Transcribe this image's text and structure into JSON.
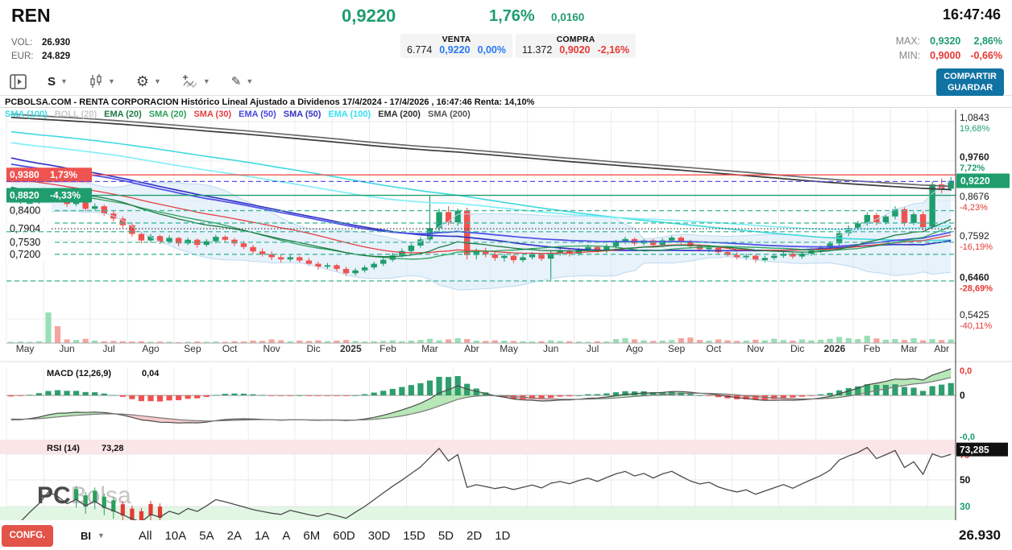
{
  "header": {
    "symbol": "REN",
    "price": "0,9220",
    "change_pct": "1,76%",
    "change_abs": "0,0160",
    "time": "16:47:46",
    "vol_label": "VOL:",
    "vol_value": "26.930",
    "eur_label": "EUR:",
    "eur_value": "24.829",
    "venta": {
      "title": "VENTA",
      "size": "6.774",
      "price": "0,9220",
      "pct": "0,00%"
    },
    "compra": {
      "title": "COMPRA",
      "size": "11.372",
      "price": "0,9020",
      "pct": "-2,16%"
    },
    "max": {
      "label": "MAX:",
      "value": "0,9320",
      "pct": "2,86%"
    },
    "min": {
      "label": "MIN:",
      "value": "0,9000",
      "pct": "-0,66%"
    }
  },
  "toolbar": {
    "interval": "S",
    "share_line1": "COMPARTIR",
    "share_line2": "GUARDAR"
  },
  "chart": {
    "title": "PCBOLSA.COM - RENTA CORPORACION Histórico Lineal Ajustado a Dividenos 17/4/2024 - 17/4/2026 , 16:47:46 Renta: 14,10%",
    "legend": [
      {
        "label": "SMA (100)",
        "color": "#3fd9e0"
      },
      {
        "label": "BOLL (20)",
        "color": "#c9c9c9"
      },
      {
        "label": "EMA (20)",
        "color": "#1d7a40"
      },
      {
        "label": "SMA (20)",
        "color": "#2ba05a"
      },
      {
        "label": "SMA (30)",
        "color": "#e34040"
      },
      {
        "label": "EMA (50)",
        "color": "#4747e0"
      },
      {
        "label": "SMA (50)",
        "color": "#3434c4"
      },
      {
        "label": "EMA (100)",
        "color": "#35e0f0"
      },
      {
        "label": "EMA (200)",
        "color": "#2f2f2f"
      },
      {
        "label": "SMA (200)",
        "color": "#555555"
      }
    ],
    "watermark": {
      "bold": "PC",
      "light": "Bolsa"
    }
  },
  "macd": {
    "label": "MACD (12,26,9)",
    "value": "0,04",
    "axis_top": {
      "label": "0,0",
      "color": "#e53935"
    },
    "axis_zero": {
      "label": "0",
      "color": "#111111"
    },
    "axis_bottom": {
      "label": "-0,0",
      "color": "#1f9d6d"
    }
  },
  "rsi": {
    "label": "RSI (14)",
    "value": "73,28",
    "current_box": "73,285",
    "level70": {
      "label": "70",
      "color": "#e53935"
    },
    "level50": {
      "label": "50",
      "color": "#111111"
    },
    "level30": {
      "label": "30",
      "color": "#1f9d6d"
    }
  },
  "bottom": {
    "confg": "CONFG.",
    "market": "BI",
    "ranges": [
      "All",
      "10A",
      "5A",
      "2A",
      "1A",
      "A",
      "6M",
      "60D",
      "30D",
      "15D",
      "5D",
      "2D",
      "1D"
    ],
    "current_volume": "26.930"
  },
  "chart_data": {
    "type": "candlestick",
    "period": "weekly",
    "date_range": "17/4/2024 - 17/4/2026",
    "current_price": 0.922,
    "y_axis": {
      "min": 0.4765,
      "max": 1.1175
    },
    "months": [
      {
        "l": "May",
        "i": 0
      },
      {
        "l": "Jun",
        "i": 4
      },
      {
        "l": "Jul",
        "i": 9
      },
      {
        "l": "Ago",
        "i": 13
      },
      {
        "l": "Sep",
        "i": 18
      },
      {
        "l": "Oct",
        "i": 22
      },
      {
        "l": "Nov",
        "i": 26
      },
      {
        "l": "Dic",
        "i": 31
      },
      {
        "l": "2025",
        "i": 35,
        "b": 1
      },
      {
        "l": "Feb",
        "i": 39
      },
      {
        "l": "Mar",
        "i": 43
      },
      {
        "l": "Abr",
        "i": 48
      },
      {
        "l": "May",
        "i": 52
      },
      {
        "l": "Jun",
        "i": 56
      },
      {
        "l": "Jul",
        "i": 61
      },
      {
        "l": "Ago",
        "i": 65
      },
      {
        "l": "Sep",
        "i": 70
      },
      {
        "l": "Oct",
        "i": 74
      },
      {
        "l": "Nov",
        "i": 78
      },
      {
        "l": "Dic",
        "i": 83
      },
      {
        "l": "2026",
        "i": 87,
        "b": 1
      },
      {
        "l": "Feb",
        "i": 91
      },
      {
        "l": "Mar",
        "i": 95
      },
      {
        "l": "Abr",
        "i": 99
      }
    ],
    "candles": [
      [
        0.836,
        0.852,
        0.828,
        0.845
      ],
      [
        0.845,
        0.862,
        0.84,
        0.852
      ],
      [
        0.852,
        0.872,
        0.846,
        0.862
      ],
      [
        0.862,
        0.88,
        0.856,
        0.872
      ],
      [
        0.872,
        0.896,
        0.866,
        0.888
      ],
      [
        0.888,
        0.893,
        0.868,
        0.878
      ],
      [
        0.878,
        0.884,
        0.85,
        0.858
      ],
      [
        0.858,
        0.872,
        0.852,
        0.864
      ],
      [
        0.864,
        0.87,
        0.838,
        0.845
      ],
      [
        0.845,
        0.86,
        0.84,
        0.852
      ],
      [
        0.852,
        0.856,
        0.826,
        0.832
      ],
      [
        0.832,
        0.84,
        0.81,
        0.818
      ],
      [
        0.818,
        0.824,
        0.792,
        0.8
      ],
      [
        0.8,
        0.806,
        0.768,
        0.776
      ],
      [
        0.776,
        0.782,
        0.75,
        0.758
      ],
      [
        0.758,
        0.776,
        0.752,
        0.77
      ],
      [
        0.77,
        0.774,
        0.748,
        0.755
      ],
      [
        0.755,
        0.772,
        0.75,
        0.765
      ],
      [
        0.765,
        0.768,
        0.742,
        0.75
      ],
      [
        0.75,
        0.766,
        0.745,
        0.76
      ],
      [
        0.76,
        0.764,
        0.738,
        0.746
      ],
      [
        0.746,
        0.762,
        0.741,
        0.756
      ],
      [
        0.756,
        0.774,
        0.75,
        0.768
      ],
      [
        0.768,
        0.772,
        0.752,
        0.76
      ],
      [
        0.76,
        0.765,
        0.742,
        0.75
      ],
      [
        0.75,
        0.756,
        0.734,
        0.74
      ],
      [
        0.74,
        0.746,
        0.722,
        0.728
      ],
      [
        0.728,
        0.736,
        0.714,
        0.72
      ],
      [
        0.72,
        0.728,
        0.704,
        0.712
      ],
      [
        0.712,
        0.72,
        0.698,
        0.706
      ],
      [
        0.706,
        0.718,
        0.7,
        0.712
      ],
      [
        0.712,
        0.716,
        0.696,
        0.703
      ],
      [
        0.703,
        0.71,
        0.688,
        0.694
      ],
      [
        0.694,
        0.7,
        0.678,
        0.686
      ],
      [
        0.686,
        0.696,
        0.68,
        0.69
      ],
      [
        0.69,
        0.694,
        0.672,
        0.68
      ],
      [
        0.68,
        0.686,
        0.66,
        0.668
      ],
      [
        0.668,
        0.682,
        0.662,
        0.676
      ],
      [
        0.676,
        0.69,
        0.67,
        0.684
      ],
      [
        0.684,
        0.7,
        0.678,
        0.694
      ],
      [
        0.694,
        0.712,
        0.688,
        0.705
      ],
      [
        0.705,
        0.724,
        0.7,
        0.717
      ],
      [
        0.717,
        0.736,
        0.712,
        0.729
      ],
      [
        0.729,
        0.75,
        0.724,
        0.744
      ],
      [
        0.744,
        0.768,
        0.738,
        0.761
      ],
      [
        0.761,
        0.882,
        0.756,
        0.792
      ],
      [
        0.792,
        0.845,
        0.78,
        0.836
      ],
      [
        0.836,
        0.852,
        0.8,
        0.808
      ],
      [
        0.808,
        0.846,
        0.798,
        0.84
      ],
      [
        0.84,
        0.848,
        0.706,
        0.718
      ],
      [
        0.718,
        0.736,
        0.706,
        0.73
      ],
      [
        0.73,
        0.738,
        0.712,
        0.72
      ],
      [
        0.72,
        0.728,
        0.702,
        0.71
      ],
      [
        0.71,
        0.722,
        0.7,
        0.716
      ],
      [
        0.716,
        0.72,
        0.696,
        0.704
      ],
      [
        0.704,
        0.718,
        0.698,
        0.712
      ],
      [
        0.712,
        0.726,
        0.706,
        0.72
      ],
      [
        0.72,
        0.724,
        0.702,
        0.708
      ],
      [
        0.708,
        0.73,
        0.648,
        0.724
      ],
      [
        0.724,
        0.736,
        0.716,
        0.73
      ],
      [
        0.73,
        0.734,
        0.714,
        0.722
      ],
      [
        0.722,
        0.738,
        0.716,
        0.732
      ],
      [
        0.732,
        0.746,
        0.726,
        0.74
      ],
      [
        0.74,
        0.744,
        0.724,
        0.73
      ],
      [
        0.73,
        0.748,
        0.724,
        0.742
      ],
      [
        0.742,
        0.76,
        0.736,
        0.754
      ],
      [
        0.754,
        0.768,
        0.748,
        0.762
      ],
      [
        0.762,
        0.766,
        0.744,
        0.75
      ],
      [
        0.75,
        0.764,
        0.744,
        0.758
      ],
      [
        0.758,
        0.762,
        0.74,
        0.746
      ],
      [
        0.746,
        0.764,
        0.74,
        0.758
      ],
      [
        0.758,
        0.772,
        0.752,
        0.766
      ],
      [
        0.766,
        0.77,
        0.748,
        0.754
      ],
      [
        0.754,
        0.76,
        0.736,
        0.742
      ],
      [
        0.742,
        0.748,
        0.728,
        0.734
      ],
      [
        0.734,
        0.744,
        0.726,
        0.738
      ],
      [
        0.738,
        0.742,
        0.72,
        0.726
      ],
      [
        0.726,
        0.732,
        0.712,
        0.718
      ],
      [
        0.718,
        0.726,
        0.706,
        0.712
      ],
      [
        0.712,
        0.722,
        0.704,
        0.716
      ],
      [
        0.716,
        0.72,
        0.698,
        0.704
      ],
      [
        0.704,
        0.716,
        0.698,
        0.71
      ],
      [
        0.71,
        0.722,
        0.704,
        0.716
      ],
      [
        0.716,
        0.728,
        0.71,
        0.722
      ],
      [
        0.722,
        0.726,
        0.708,
        0.714
      ],
      [
        0.714,
        0.728,
        0.708,
        0.722
      ],
      [
        0.722,
        0.736,
        0.716,
        0.73
      ],
      [
        0.73,
        0.744,
        0.724,
        0.738
      ],
      [
        0.738,
        0.756,
        0.732,
        0.75
      ],
      [
        0.75,
        0.785,
        0.744,
        0.778
      ],
      [
        0.778,
        0.8,
        0.77,
        0.792
      ],
      [
        0.792,
        0.812,
        0.786,
        0.805
      ],
      [
        0.805,
        0.835,
        0.798,
        0.828
      ],
      [
        0.828,
        0.834,
        0.8,
        0.808
      ],
      [
        0.808,
        0.83,
        0.802,
        0.824
      ],
      [
        0.824,
        0.852,
        0.816,
        0.844
      ],
      [
        0.844,
        0.85,
        0.798,
        0.806
      ],
      [
        0.806,
        0.836,
        0.8,
        0.83
      ],
      [
        0.83,
        0.838,
        0.786,
        0.794
      ],
      [
        0.794,
        0.92,
        0.79,
        0.912
      ],
      [
        0.912,
        0.928,
        0.888,
        0.9
      ],
      [
        0.9,
        0.932,
        0.894,
        0.922
      ]
    ],
    "volumes": [
      4,
      5,
      4,
      6,
      100,
      55,
      12,
      10,
      14,
      8,
      6,
      7,
      6,
      5,
      6,
      4,
      5,
      4,
      3,
      4,
      5,
      4,
      5,
      4,
      6,
      5,
      8,
      7,
      12,
      9,
      6,
      8,
      7,
      9,
      6,
      8,
      10,
      7,
      5,
      6,
      7,
      9,
      6,
      8,
      10,
      14,
      9,
      12,
      16,
      13,
      8,
      7,
      9,
      8,
      7,
      6,
      5,
      6,
      9,
      7,
      6,
      5,
      4,
      6,
      5,
      13,
      16,
      12,
      9,
      7,
      8,
      10,
      16,
      18,
      10,
      8,
      12,
      9,
      7,
      8,
      11,
      9,
      14,
      10,
      8,
      12,
      9,
      11,
      14,
      20,
      16,
      13,
      24,
      15,
      11,
      13,
      10,
      16,
      9,
      13,
      10,
      12
    ],
    "levels": [
      {
        "value": 0.938,
        "label": "0,9380",
        "pct": "1,73%",
        "color": "#ef5350",
        "style": "solid",
        "chip": "red"
      },
      {
        "value": 0.92,
        "color": "#5252e8",
        "style": "dashed"
      },
      {
        "value": 0.882,
        "label": "0,8820",
        "pct": "-4,33%",
        "color": "#1f9d6d",
        "style": "solid",
        "chip": "green"
      },
      {
        "value": 0.84,
        "label": "0,8400",
        "color": "#3cb89a",
        "style": "dashed",
        "chip": "plain"
      },
      {
        "value": 0.806,
        "color": "#3cb89a",
        "style": "dashed"
      },
      {
        "value": 0.7904,
        "label": "0,7904",
        "color": "#444444",
        "style": "dotted",
        "chip": "plain"
      },
      {
        "value": 0.782,
        "color": "#3cb89a",
        "style": "dashed"
      },
      {
        "value": 0.753,
        "label": "0,7530",
        "color": "#3cb89a",
        "style": "dashed",
        "chip": "plain"
      },
      {
        "value": 0.72,
        "label": "0,7200",
        "color": "#3cb89a",
        "style": "dashed",
        "chip": "plain"
      },
      {
        "value": 0.647,
        "color": "#3cb89a",
        "style": "dashed"
      }
    ],
    "right_axis": [
      {
        "value": 1.0843,
        "label": "1,0843",
        "pct": "19,68%",
        "dir": "up"
      },
      {
        "value": 0.976,
        "label": "0,9760",
        "pct": "7,72%",
        "dir": "up",
        "bold": true
      },
      {
        "value": 0.8676,
        "label": "0,8676",
        "pct": "-4,23%",
        "dir": "down"
      },
      {
        "value": 0.7592,
        "label": "0,7592",
        "pct": "-16,19%",
        "dir": "down"
      },
      {
        "value": 0.646,
        "label": "0,6460",
        "pct": "-28,69%",
        "dir": "down",
        "bold": true
      },
      {
        "value": 0.5425,
        "label": "0,5425",
        "pct": "-40,11%",
        "dir": "down"
      }
    ],
    "current_chip": {
      "value": 0.922,
      "label": "0,9220",
      "color": "#1f9d6d"
    },
    "indicators": {
      "macd": [
        12,
        26,
        9
      ],
      "rsi": 14,
      "rsi_current": 73.285
    },
    "pre_window_trend": {
      "flat_start": 1.17,
      "flat_end": 1.12,
      "flat_len": 150,
      "drop_end": 0.86,
      "drop_len": 50
    },
    "colors": {
      "candle_up": "#1f9d6d",
      "candle_down": "#ef5350",
      "vol_up": "#98dfb6",
      "vol_down": "#f4a59e",
      "boll_fill": "#d9e9f8",
      "macd_up": "#2e9e6f",
      "macd_down": "#ef5350",
      "rsi_overbought_band": "#fbe5e7",
      "rsi_oversold_band": "#e2f6e4"
    }
  }
}
